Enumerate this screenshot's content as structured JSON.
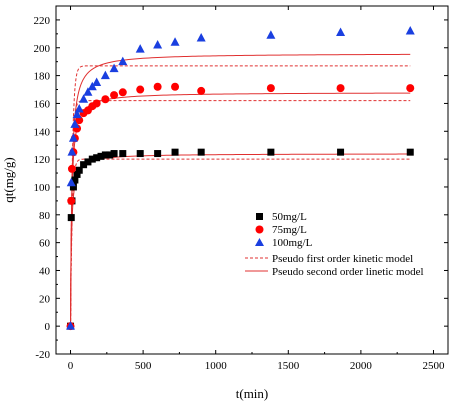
{
  "chart_data": {
    "type": "scatter",
    "title": "",
    "xlabel": "t(min)",
    "ylabel": "qt(mg/g)",
    "xlim": [
      -100,
      2600
    ],
    "ylim": [
      -20,
      230
    ],
    "x_ticks": [
      0,
      500,
      1000,
      1500,
      2000,
      2500
    ],
    "y_ticks": [
      -20,
      0,
      20,
      40,
      60,
      80,
      100,
      120,
      140,
      160,
      180,
      200,
      220
    ],
    "grid": false,
    "legend_position": "center-right",
    "series": [
      {
        "name": "50mg/L",
        "marker": "square",
        "color": "#000000",
        "x": [
          0,
          5,
          10,
          20,
          30,
          45,
          60,
          90,
          120,
          150,
          180,
          210,
          240,
          270,
          300,
          360,
          480,
          600,
          720,
          900,
          1380,
          1860,
          2340
        ],
        "y": [
          0,
          78,
          90,
          100,
          105,
          109,
          112,
          116,
          118,
          120,
          121,
          122,
          123,
          123,
          124,
          124,
          124,
          124,
          125,
          125,
          125,
          125,
          125
        ]
      },
      {
        "name": "75mg/L",
        "marker": "circle",
        "color": "#ff0000",
        "x": [
          0,
          5,
          10,
          20,
          30,
          45,
          60,
          90,
          120,
          150,
          180,
          240,
          300,
          360,
          480,
          600,
          720,
          900,
          1380,
          1860,
          2340
        ],
        "y": [
          0,
          90,
          113,
          125,
          135,
          142,
          148,
          153,
          155,
          158,
          160,
          163,
          166,
          168,
          170,
          172,
          172,
          169,
          171,
          171,
          171
        ]
      },
      {
        "name": "100mg/L",
        "marker": "triangle",
        "color": "#1a3fe0",
        "x": [
          0,
          5,
          10,
          20,
          30,
          45,
          60,
          90,
          120,
          150,
          180,
          240,
          300,
          360,
          480,
          600,
          720,
          900,
          1380,
          1860,
          2340
        ],
        "y": [
          0,
          103,
          125,
          135,
          145,
          152,
          156,
          163,
          168,
          172,
          175,
          180,
          185,
          190,
          199,
          202,
          204,
          207,
          209,
          211,
          212
        ]
      }
    ],
    "fit_lines": [
      {
        "name": "Pseudo first order kinetic model",
        "style": "dashed",
        "color": "#e03030",
        "qe": [
          120,
          162,
          187
        ],
        "k": [
          0.09,
          0.09,
          0.08
        ]
      },
      {
        "name": "Pseudo second order linetic model",
        "style": "solid",
        "color": "#e03030",
        "qe": [
          124,
          168,
          196
        ],
        "k2": [
          0.0012,
          0.00075,
          0.00055
        ]
      }
    ]
  }
}
